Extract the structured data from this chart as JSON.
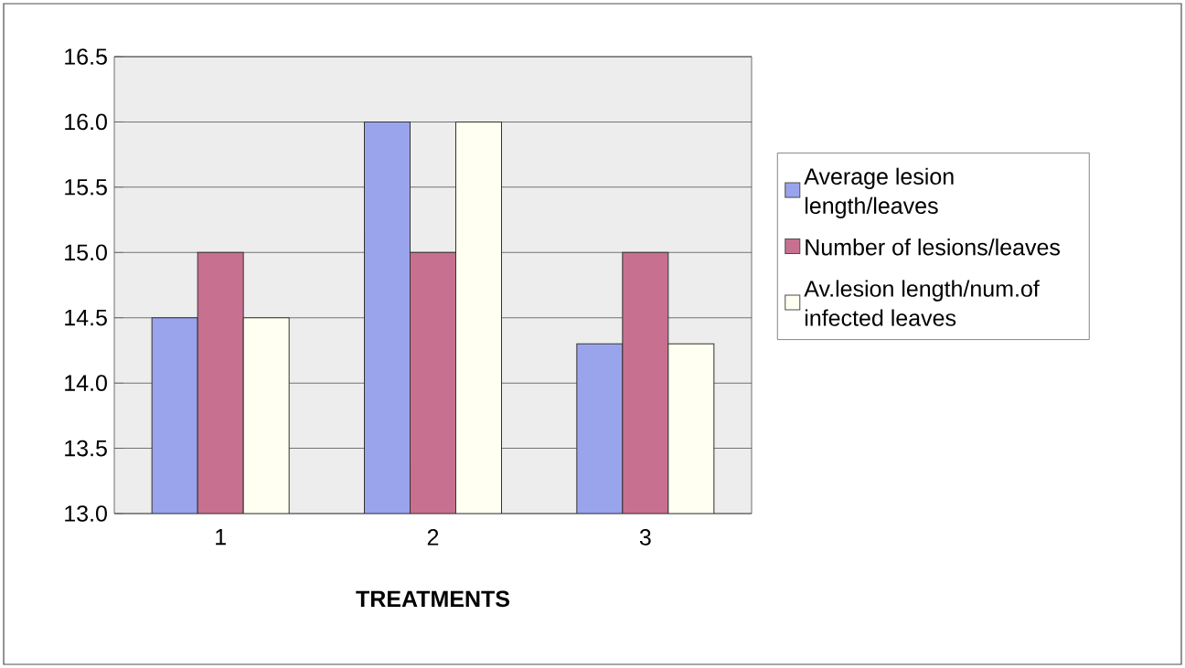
{
  "chart_data": {
    "type": "bar",
    "xlabel": "TREATMENTS",
    "categories": [
      "1",
      "2",
      "3"
    ],
    "series": [
      {
        "name": "Average lesion length/leaves",
        "color": "#9aa4ec",
        "values": [
          14.5,
          16.0,
          14.3
        ]
      },
      {
        "name": "Number of lesions/leaves",
        "color": "#c87090",
        "values": [
          15.0,
          15.0,
          15.0
        ]
      },
      {
        "name": "Av.lesion length/num.of infected leaves",
        "color": "#fffff2",
        "values": [
          14.5,
          16.0,
          14.3
        ]
      }
    ],
    "ylim": [
      13.0,
      16.5
    ],
    "yticks": [
      {
        "value": 13.0,
        "label": "13.0"
      },
      {
        "value": 13.5,
        "label": "13.5"
      },
      {
        "value": 14.0,
        "label": "14.0"
      },
      {
        "value": 14.5,
        "label": "14.5"
      },
      {
        "value": 15.0,
        "label": "15.0"
      },
      {
        "value": 15.5,
        "label": "15.5"
      },
      {
        "value": 16.0,
        "label": "16.0"
      },
      {
        "value": 16.5,
        "label": "16.5"
      }
    ],
    "grid": "y",
    "legend": "right"
  }
}
